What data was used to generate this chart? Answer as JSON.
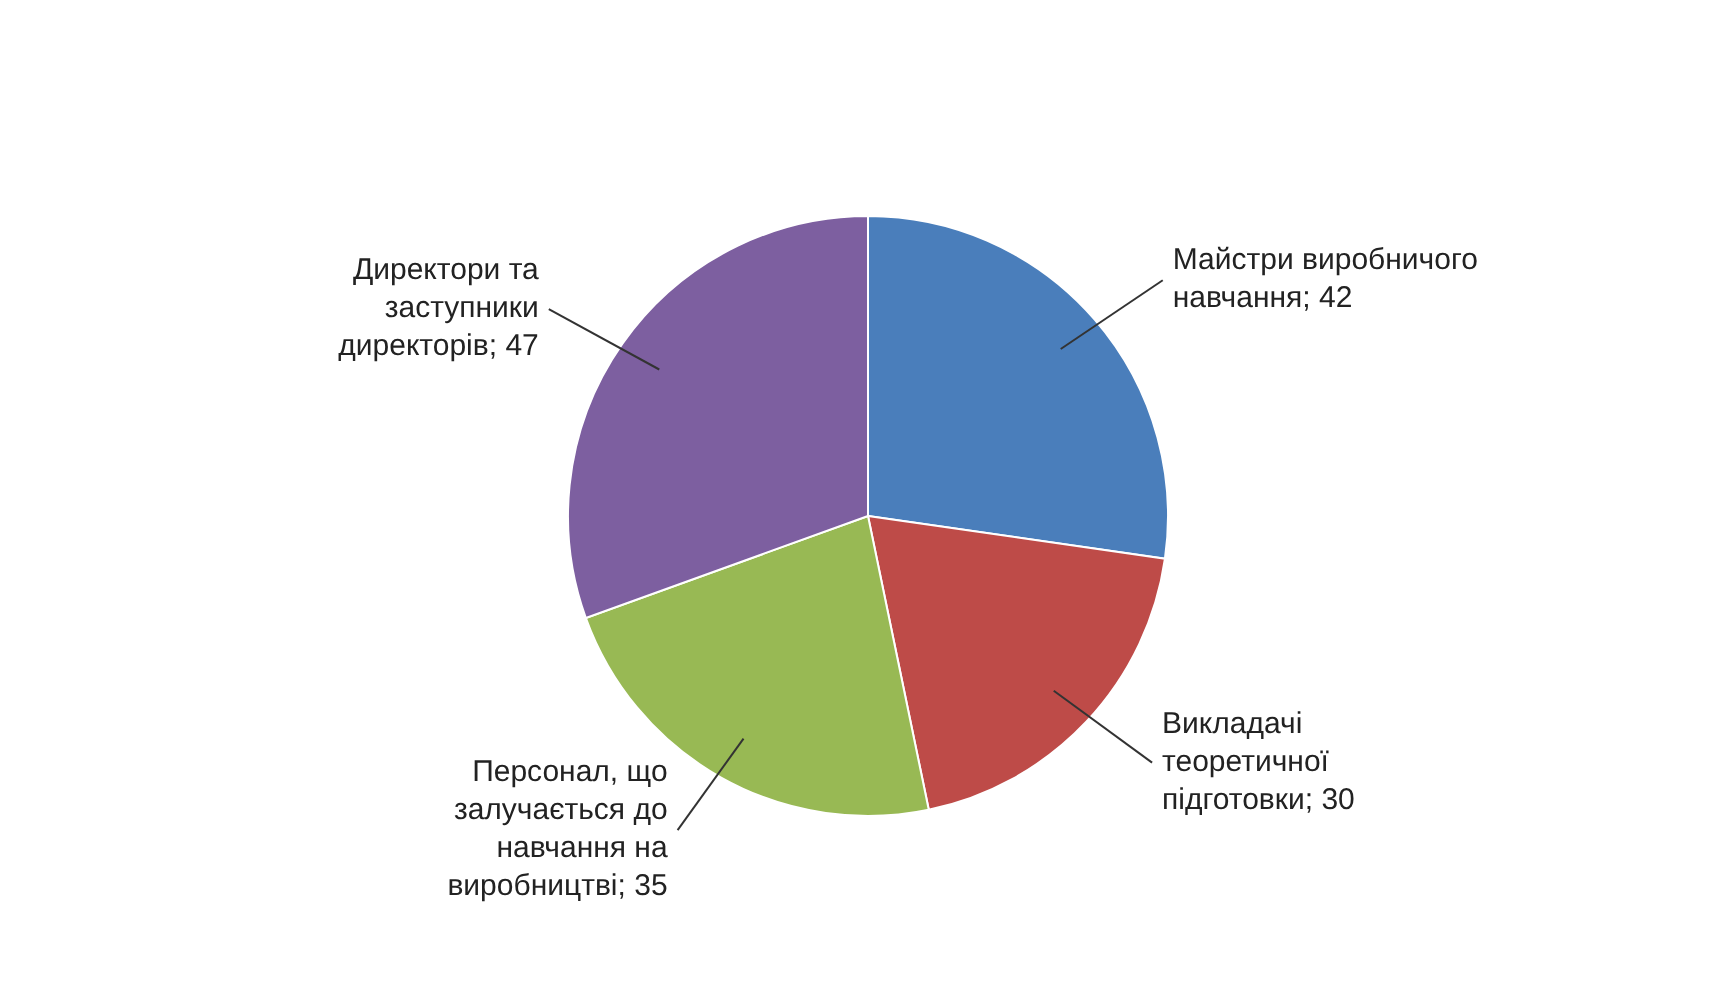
{
  "chart_data": {
    "type": "pie",
    "categories": [
      "Майстри виробничого навчання",
      "Викладачі теоретичної підготовки",
      "Персонал, що залучається до навчання на виробництві",
      "Директори та заступники директорів"
    ],
    "values": [
      42,
      30,
      35,
      47
    ],
    "colors": [
      "#4a7ebb",
      "#be4b48",
      "#98b954",
      "#7d5fa0"
    ],
    "value_labels": [
      "; 42",
      "; 30",
      "; 35",
      "; 47"
    ]
  }
}
